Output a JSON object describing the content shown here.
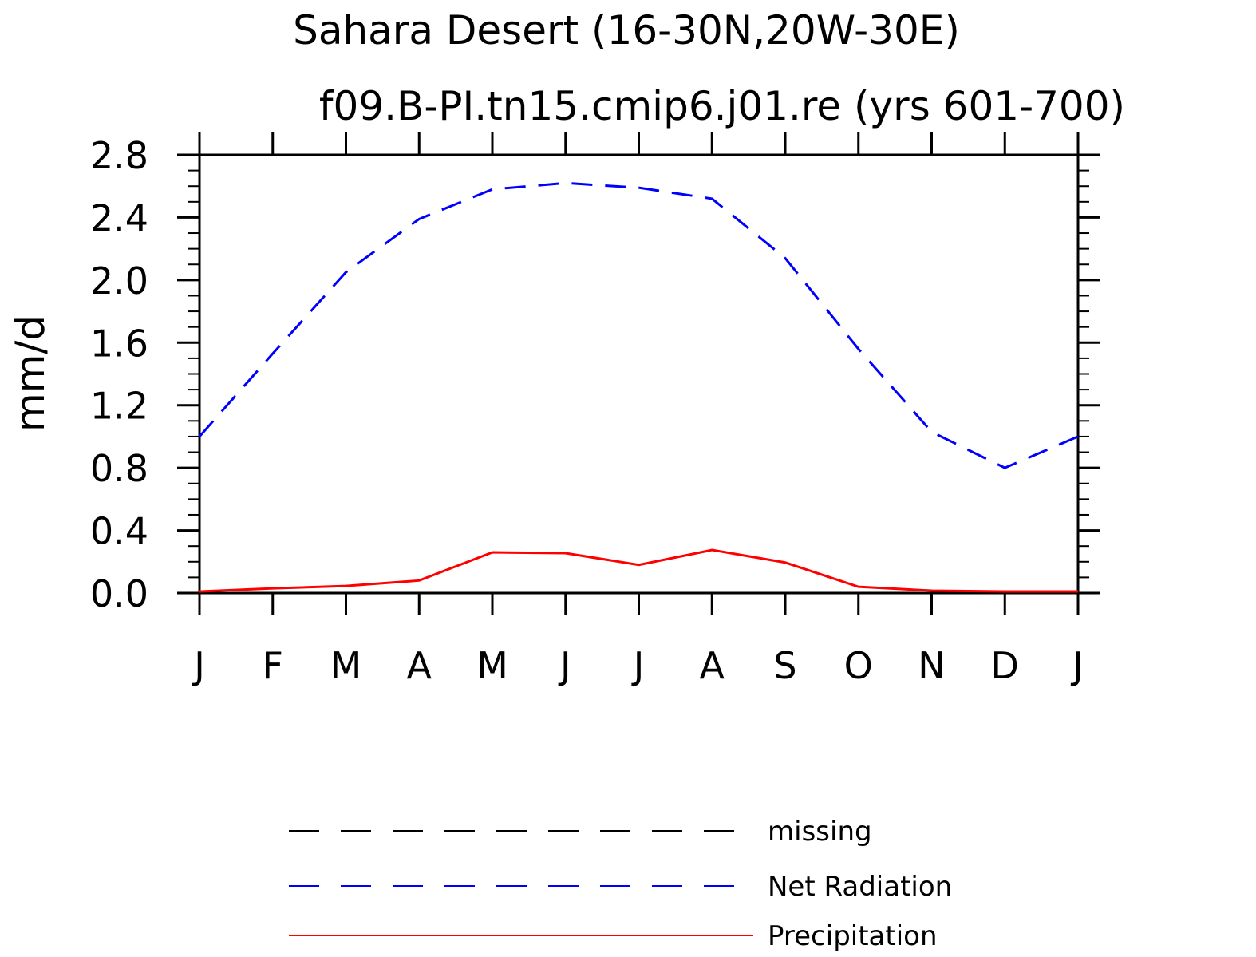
{
  "chart_data": {
    "type": "line",
    "title": "Sahara Desert (16-30N,20W-30E)",
    "subtitle": "f09.B-PI.tn15.cmip6.j01.re (yrs 601-700)",
    "xlabel": "",
    "ylabel": "mm/d",
    "categories": [
      "J",
      "F",
      "M",
      "A",
      "M",
      "J",
      "J",
      "A",
      "S",
      "O",
      "N",
      "D",
      "J"
    ],
    "yticks": [
      "0.0",
      "0.4",
      "0.8",
      "1.2",
      "1.6",
      "2.0",
      "2.4",
      "2.8"
    ],
    "ylim": [
      0,
      2.8
    ],
    "series": [
      {
        "name": "missing",
        "color": "#000000",
        "dash": "dashed",
        "values": [
          null,
          null,
          null,
          null,
          null,
          null,
          null,
          null,
          null,
          null,
          null,
          null,
          null
        ]
      },
      {
        "name": "Net Radiation",
        "color": "#0000ff",
        "dash": "dashed",
        "values": [
          1.0,
          1.53,
          2.05,
          2.39,
          2.58,
          2.62,
          2.59,
          2.52,
          2.14,
          1.56,
          1.03,
          0.8,
          1.0
        ]
      },
      {
        "name": "Precipitation",
        "color": "#ff0000",
        "dash": "solid",
        "values": [
          0.01,
          0.03,
          0.045,
          0.08,
          0.26,
          0.255,
          0.18,
          0.275,
          0.195,
          0.04,
          0.015,
          0.01,
          0.01
        ]
      }
    ],
    "legend_position": "bottom",
    "grid": false
  }
}
